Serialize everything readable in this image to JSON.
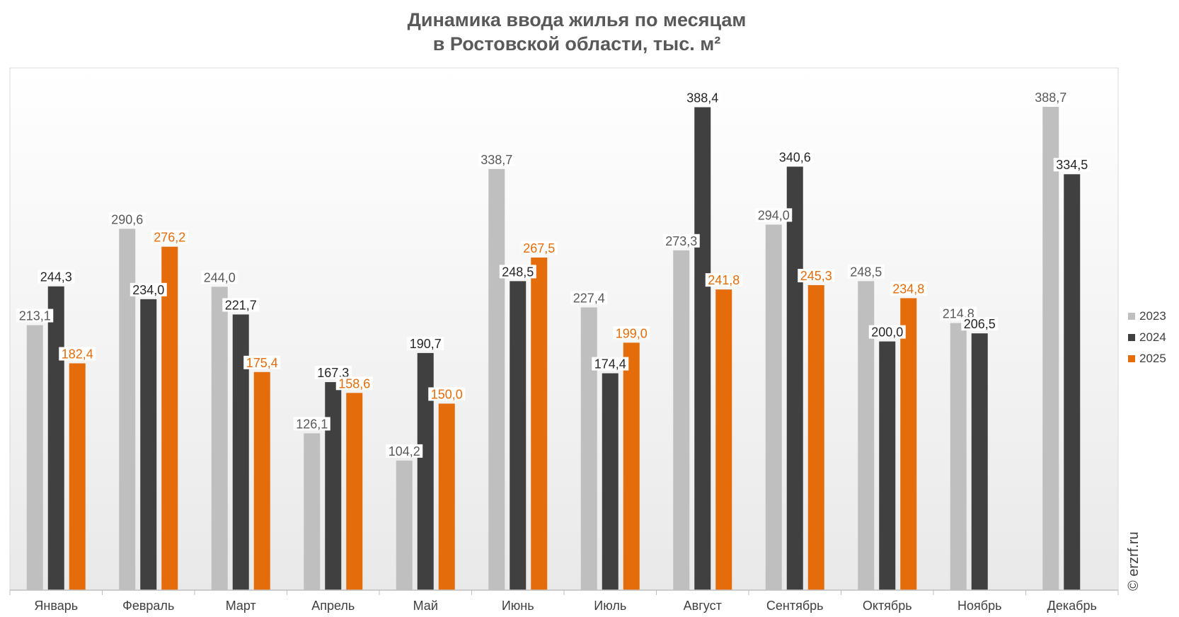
{
  "chart_data": {
    "type": "bar",
    "title": "Динамика ввода жилья по месяцам",
    "subtitle": "в Ростовской области, тыс. м²",
    "categories": [
      "Январь",
      "Февраль",
      "Март",
      "Апрель",
      "Май",
      "Июнь",
      "Июль",
      "Август",
      "Сентябрь",
      "Октябрь",
      "Ноябрь",
      "Декабрь"
    ],
    "series": [
      {
        "name": "2023",
        "color": "#bfbfbf",
        "label_color": "#595959",
        "values": [
          213.1,
          290.6,
          244.0,
          126.1,
          104.2,
          338.7,
          227.4,
          273.3,
          294.0,
          248.5,
          214.8,
          388.7
        ],
        "labels": [
          "213,1",
          "290,6",
          "244,0",
          "126,1",
          "104,2",
          "338,7",
          "227,4",
          "273,3",
          "294,0",
          "248,5",
          "214,8",
          "388,7"
        ]
      },
      {
        "name": "2024",
        "color": "#404040",
        "label_color": "#262626",
        "values": [
          244.3,
          234.0,
          221.7,
          167.3,
          190.7,
          248.5,
          174.4,
          388.4,
          340.6,
          200.0,
          206.5,
          334.5
        ],
        "labels": [
          "244,3",
          "234,0",
          "221,7",
          "167,3",
          "190,7",
          "248,5",
          "174,4",
          "388,4",
          "340,6",
          "200,0",
          "206,5",
          "334,5"
        ]
      },
      {
        "name": "2025",
        "color": "#e46c0a",
        "label_color": "#e46c0a",
        "values": [
          182.4,
          276.2,
          175.4,
          158.6,
          150.0,
          267.5,
          199.0,
          241.8,
          245.3,
          234.8,
          null,
          null
        ],
        "labels": [
          "182,4",
          "276,2",
          "175,4",
          "158,6",
          "150,0",
          "267,5",
          "199,0",
          "241,8",
          "245,3",
          "234,8",
          null,
          null
        ]
      }
    ],
    "ylim": [
      0,
      420
    ],
    "grid": false,
    "legend_position": "right"
  },
  "credit": "© erzrf.ru"
}
